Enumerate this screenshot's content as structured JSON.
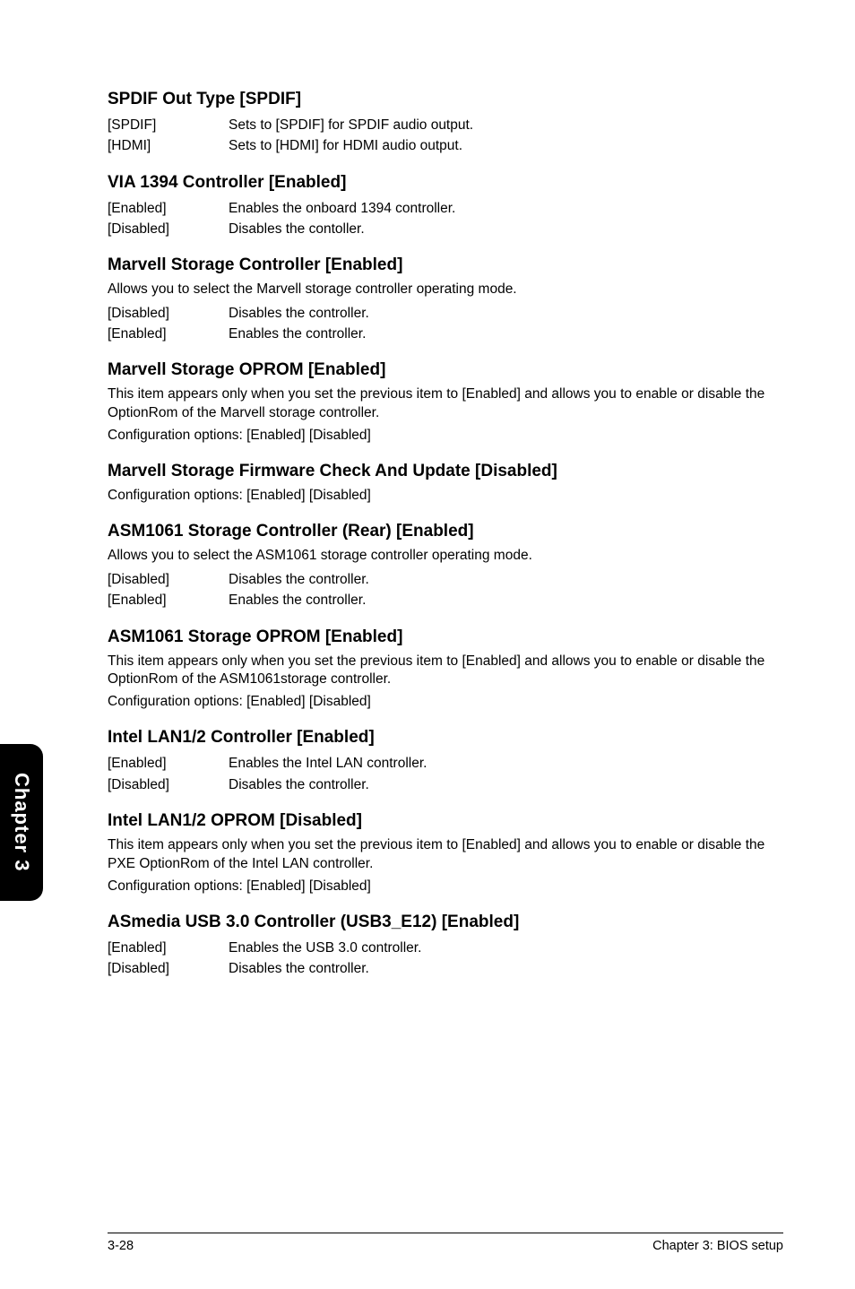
{
  "sections": [
    {
      "heading": "SPDIF Out Type [SPDIF]",
      "rows": [
        {
          "k": "[SPDIF]",
          "v": "Sets to [SPDIF] for SPDIF audio output."
        },
        {
          "k": "[HDMI]",
          "v": "Sets to [HDMI] for HDMI audio output."
        }
      ]
    },
    {
      "heading": "VIA 1394 Controller [Enabled]",
      "rows": [
        {
          "k": "[Enabled]",
          "v": "Enables the onboard 1394 controller."
        },
        {
          "k": "[Disabled]",
          "v": "Disables the contoller."
        }
      ]
    },
    {
      "heading": "Marvell Storage Controller [Enabled]",
      "body": "Allows you to select the Marvell storage controller operating mode.",
      "rows": [
        {
          "k": "[Disabled]",
          "v": "Disables the controller."
        },
        {
          "k": "[Enabled]",
          "v": "Enables the controller."
        }
      ]
    },
    {
      "heading": "Marvell Storage OPROM [Enabled]",
      "body": "This item appears only when you set the previous item to [Enabled] and allows you to enable or disable the OptionRom of the Marvell storage controller.\nConfiguration options: [Enabled] [Disabled]"
    },
    {
      "heading": "Marvell Storage Firmware Check And Update [Disabled]",
      "body": "Configuration options: [Enabled] [Disabled]"
    },
    {
      "heading": "ASM1061 Storage Controller (Rear) [Enabled]",
      "body": "Allows you to select the ASM1061 storage controller operating mode.",
      "rows": [
        {
          "k": "[Disabled]",
          "v": "Disables the controller."
        },
        {
          "k": "[Enabled]",
          "v": "Enables the controller."
        }
      ]
    },
    {
      "heading": "ASM1061 Storage OPROM [Enabled]",
      "body": "This item appears only when you set the previous item to [Enabled] and allows you to enable or disable the OptionRom of the ASM1061storage controller.\nConfiguration options: [Enabled] [Disabled]"
    },
    {
      "heading": "Intel LAN1/2 Controller [Enabled]",
      "rows": [
        {
          "k": "[Enabled]",
          "v": "Enables the Intel LAN controller."
        },
        {
          "k": "[Disabled]",
          "v": "Disables the controller."
        }
      ]
    },
    {
      "heading": "Intel LAN1/2 OPROM [Disabled]",
      "body": "This item appears only when you set the previous item to [Enabled] and allows you to enable or disable the PXE OptionRom of the Intel LAN controller.\nConfiguration options: [Enabled] [Disabled]"
    },
    {
      "heading": "ASmedia USB 3.0 Controller (USB3_E12) [Enabled]",
      "rows": [
        {
          "k": "[Enabled]",
          "v": "Enables the USB 3.0 controller."
        },
        {
          "k": "[Disabled]",
          "v": "Disables the controller."
        }
      ]
    }
  ],
  "chapter_tab": "Chapter 3",
  "footer_left": "3-28",
  "footer_right": "Chapter 3: BIOS setup"
}
